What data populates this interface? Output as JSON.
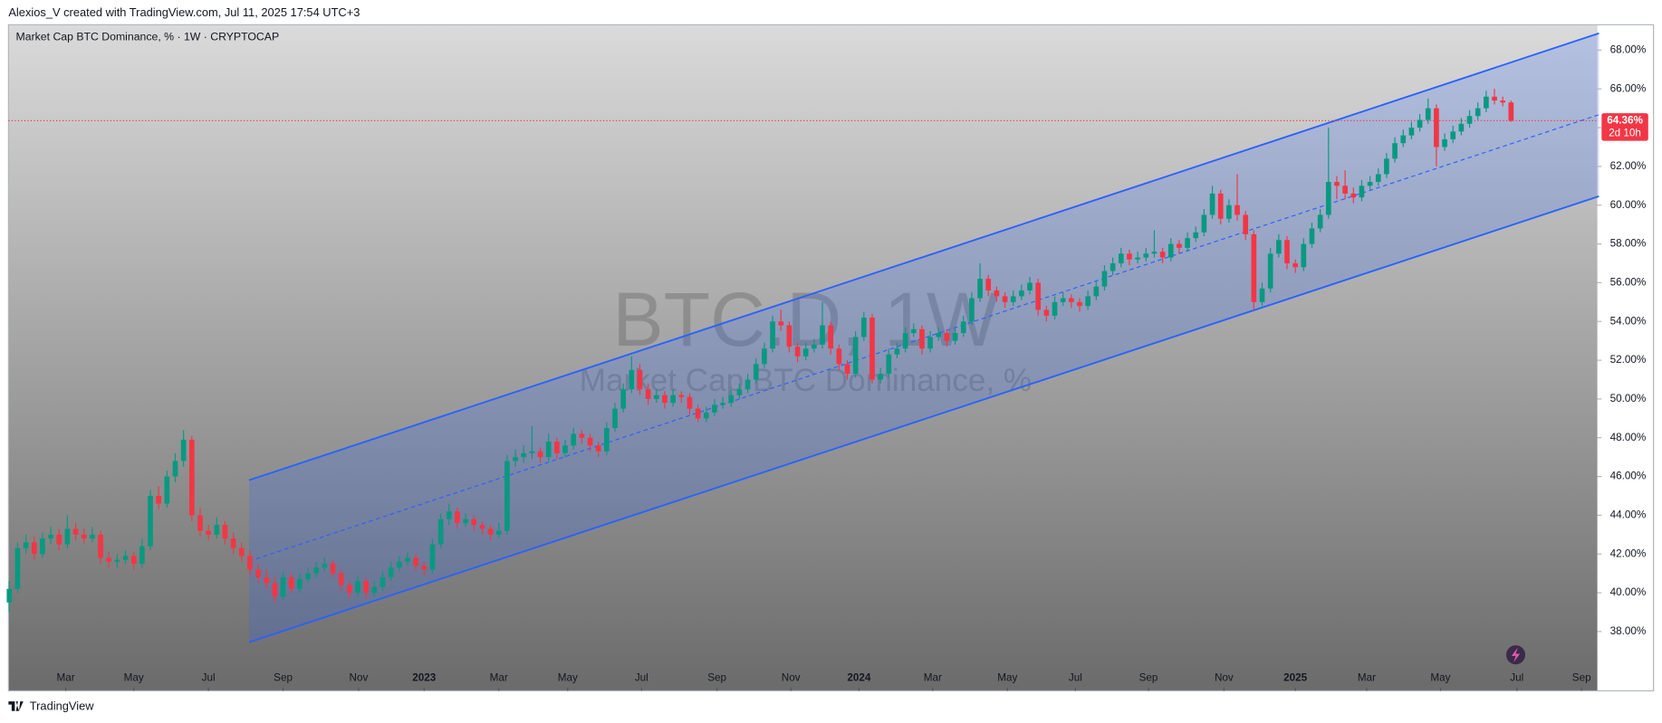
{
  "header": "Alexios_V created with TradingView.com, Jul 11, 2025 17:54 UTC+3",
  "footer": "TradingView",
  "chart_data": {
    "type": "candlestick",
    "title": "Market Cap BTC Dominance, % · 1W · CRYPTOCAP",
    "watermark": "BTC.D, 1W",
    "watermark_subtitle": "Market Cap BTC Dominance, %",
    "up_color": "#089981",
    "down_color": "#f23645",
    "xlim": [
      -0.1,
      191.4
    ],
    "ylim": [
      34.94,
      69.31
    ],
    "yticks": [
      {
        "value": 38,
        "label": "38.00%"
      },
      {
        "value": 40,
        "label": "40.00%"
      },
      {
        "value": 42,
        "label": "42.00%"
      },
      {
        "value": 44,
        "label": "44.00%"
      },
      {
        "value": 46,
        "label": "46.00%"
      },
      {
        "value": 48,
        "label": "48.00%"
      },
      {
        "value": 50,
        "label": "50.00%"
      },
      {
        "value": 52,
        "label": "52.00%"
      },
      {
        "value": 54,
        "label": "54.00%"
      },
      {
        "value": 56,
        "label": "56.00%"
      },
      {
        "value": 58,
        "label": "58.00%"
      },
      {
        "value": 60,
        "label": "60.00%"
      },
      {
        "value": 62,
        "label": "62.00%"
      },
      {
        "value": 64,
        "label": "64.00%"
      },
      {
        "value": 66,
        "label": "66.00%"
      },
      {
        "value": 68,
        "label": "68.00%"
      }
    ],
    "xticks": [
      {
        "value": 6.8,
        "label": "Mar"
      },
      {
        "value": 15.0,
        "label": "May"
      },
      {
        "value": 24.0,
        "label": "Jul"
      },
      {
        "value": 33.0,
        "label": "Sep"
      },
      {
        "value": 42.1,
        "label": "Nov"
      },
      {
        "value": 50.0,
        "label": "2023"
      },
      {
        "value": 59.0,
        "label": "Mar"
      },
      {
        "value": 67.3,
        "label": "May"
      },
      {
        "value": 76.2,
        "label": "Jul"
      },
      {
        "value": 85.3,
        "label": "Sep"
      },
      {
        "value": 94.2,
        "label": "Nov"
      },
      {
        "value": 102.4,
        "label": "2024"
      },
      {
        "value": 111.3,
        "label": "Mar"
      },
      {
        "value": 120.3,
        "label": "May"
      },
      {
        "value": 128.5,
        "label": "Jul"
      },
      {
        "value": 137.3,
        "label": "Sep"
      },
      {
        "value": 146.4,
        "label": "Nov"
      },
      {
        "value": 155.0,
        "label": "2025"
      },
      {
        "value": 163.6,
        "label": "Mar"
      },
      {
        "value": 172.5,
        "label": "May"
      },
      {
        "value": 181.7,
        "label": "Jul"
      },
      {
        "value": 189.5,
        "label": "Sep"
      }
    ],
    "last_price": {
      "value": 64.36,
      "label": "64.36%",
      "countdown": "2d 10h",
      "color": "#f23645"
    },
    "channel": {
      "color": "#2962ff",
      "x": [
        28.9,
        191.6
      ],
      "upper": [
        45.81,
        68.87
      ],
      "middle": [
        41.63,
        64.67
      ],
      "lower": [
        37.45,
        60.46
      ]
    },
    "values": [
      [
        39.5,
        40.6,
        39.0,
        40.2
      ],
      [
        40.2,
        42.6,
        40.0,
        42.3
      ],
      [
        42.3,
        43.0,
        42.0,
        42.6
      ],
      [
        42.6,
        42.9,
        41.7,
        42.0
      ],
      [
        42.0,
        43.1,
        41.8,
        42.8
      ],
      [
        42.8,
        43.4,
        42.5,
        43.0
      ],
      [
        43.0,
        43.3,
        42.2,
        42.5
      ],
      [
        42.5,
        44.0,
        42.3,
        43.3
      ],
      [
        43.3,
        43.6,
        42.7,
        43.0
      ],
      [
        43.0,
        43.3,
        42.5,
        42.8
      ],
      [
        42.8,
        43.4,
        42.6,
        43.0
      ],
      [
        43.0,
        43.2,
        41.5,
        41.8
      ],
      [
        41.8,
        42.1,
        41.3,
        41.6
      ],
      [
        41.6,
        42.0,
        41.3,
        41.7
      ],
      [
        41.7,
        42.2,
        41.5,
        41.9
      ],
      [
        41.9,
        42.1,
        41.2,
        41.5
      ],
      [
        41.5,
        42.8,
        41.3,
        42.4
      ],
      [
        42.4,
        45.3,
        42.2,
        45.0
      ],
      [
        45.0,
        45.5,
        44.3,
        44.6
      ],
      [
        44.6,
        46.3,
        44.4,
        46.0
      ],
      [
        46.0,
        47.2,
        45.7,
        46.8
      ],
      [
        46.8,
        48.4,
        46.5,
        47.9
      ],
      [
        47.9,
        48.1,
        43.7,
        44.0
      ],
      [
        44.0,
        44.4,
        42.9,
        43.2
      ],
      [
        43.2,
        43.5,
        42.7,
        43.0
      ],
      [
        43.0,
        43.9,
        42.8,
        43.5
      ],
      [
        43.5,
        43.7,
        42.5,
        42.8
      ],
      [
        42.8,
        43.1,
        42.0,
        42.3
      ],
      [
        42.3,
        42.6,
        41.6,
        41.9
      ],
      [
        41.9,
        42.2,
        40.9,
        41.2
      ],
      [
        41.2,
        41.5,
        40.5,
        40.8
      ],
      [
        40.8,
        41.2,
        40.2,
        40.5
      ],
      [
        40.5,
        40.8,
        39.5,
        39.8
      ],
      [
        39.8,
        41.1,
        39.6,
        40.8
      ],
      [
        40.8,
        41.0,
        40.0,
        40.2
      ],
      [
        40.2,
        41.0,
        40.0,
        40.7
      ],
      [
        40.7,
        41.3,
        40.5,
        41.0
      ],
      [
        41.0,
        41.6,
        40.8,
        41.3
      ],
      [
        41.3,
        41.8,
        41.1,
        41.5
      ],
      [
        41.5,
        41.7,
        40.8,
        41.0
      ],
      [
        41.0,
        41.2,
        40.1,
        40.4
      ],
      [
        40.4,
        40.6,
        39.7,
        40.0
      ],
      [
        40.0,
        40.9,
        39.8,
        40.6
      ],
      [
        40.6,
        40.8,
        39.7,
        40.0
      ],
      [
        40.0,
        40.6,
        39.8,
        40.3
      ],
      [
        40.3,
        41.1,
        40.1,
        40.8
      ],
      [
        40.8,
        41.6,
        40.6,
        41.3
      ],
      [
        41.3,
        41.9,
        41.1,
        41.6
      ],
      [
        41.6,
        42.1,
        41.4,
        41.8
      ],
      [
        41.8,
        42.0,
        41.1,
        41.4
      ],
      [
        41.4,
        41.6,
        40.9,
        41.2
      ],
      [
        41.2,
        42.8,
        41.0,
        42.5
      ],
      [
        42.5,
        44.1,
        42.3,
        43.8
      ],
      [
        43.8,
        44.6,
        43.5,
        44.2
      ],
      [
        44.2,
        44.4,
        43.3,
        43.6
      ],
      [
        43.6,
        44.1,
        43.4,
        43.8
      ],
      [
        43.8,
        44.0,
        43.2,
        43.5
      ],
      [
        43.5,
        43.7,
        43.0,
        43.3
      ],
      [
        43.3,
        43.5,
        42.7,
        43.0
      ],
      [
        43.0,
        43.6,
        42.8,
        43.2
      ],
      [
        43.2,
        47.1,
        43.0,
        46.8
      ],
      [
        46.8,
        47.4,
        46.5,
        47.0
      ],
      [
        47.0,
        47.6,
        46.7,
        47.2
      ],
      [
        47.2,
        48.6,
        46.9,
        47.3
      ],
      [
        47.3,
        47.5,
        46.7,
        47.0
      ],
      [
        47.0,
        48.2,
        46.8,
        47.8
      ],
      [
        47.8,
        48.0,
        46.9,
        47.2
      ],
      [
        47.2,
        47.9,
        47.0,
        47.6
      ],
      [
        47.6,
        48.5,
        47.4,
        48.2
      ],
      [
        48.2,
        48.4,
        47.7,
        48.0
      ],
      [
        48.0,
        48.2,
        47.3,
        47.6
      ],
      [
        47.6,
        47.8,
        47.0,
        47.3
      ],
      [
        47.3,
        48.8,
        47.1,
        48.5
      ],
      [
        48.5,
        49.8,
        48.3,
        49.5
      ],
      [
        49.5,
        50.8,
        49.3,
        50.5
      ],
      [
        50.5,
        52.2,
        50.3,
        51.5
      ],
      [
        51.5,
        51.8,
        50.2,
        50.5
      ],
      [
        50.5,
        50.8,
        49.7,
        50.0
      ],
      [
        50.0,
        50.5,
        49.8,
        50.2
      ],
      [
        50.2,
        50.4,
        49.5,
        49.8
      ],
      [
        49.8,
        50.5,
        49.6,
        50.2
      ],
      [
        50.2,
        50.4,
        49.8,
        50.1
      ],
      [
        50.1,
        50.3,
        49.2,
        49.5
      ],
      [
        49.5,
        49.7,
        48.8,
        49.0
      ],
      [
        49.0,
        49.6,
        48.8,
        49.3
      ],
      [
        49.3,
        50.0,
        49.1,
        49.7
      ],
      [
        49.7,
        50.1,
        49.5,
        49.8
      ],
      [
        49.8,
        50.5,
        49.6,
        50.2
      ],
      [
        50.2,
        50.8,
        50.0,
        50.5
      ],
      [
        50.5,
        51.3,
        50.3,
        51.0
      ],
      [
        51.0,
        52.1,
        50.8,
        51.8
      ],
      [
        51.8,
        52.9,
        51.6,
        52.6
      ],
      [
        52.6,
        54.3,
        52.4,
        54.0
      ],
      [
        54.0,
        54.6,
        53.5,
        53.8
      ],
      [
        53.8,
        54.0,
        52.4,
        52.7
      ],
      [
        52.7,
        52.9,
        51.9,
        52.2
      ],
      [
        52.2,
        52.9,
        52.0,
        52.6
      ],
      [
        52.6,
        53.1,
        52.4,
        52.8
      ],
      [
        52.8,
        55.0,
        52.6,
        53.8
      ],
      [
        53.8,
        54.0,
        52.3,
        52.6
      ],
      [
        52.6,
        52.8,
        51.5,
        51.8
      ],
      [
        51.8,
        52.0,
        51.0,
        51.3
      ],
      [
        51.3,
        53.5,
        51.1,
        53.2
      ],
      [
        53.2,
        54.5,
        53.0,
        54.2
      ],
      [
        54.2,
        54.4,
        50.8,
        51.0
      ],
      [
        51.0,
        51.6,
        50.8,
        51.3
      ],
      [
        51.3,
        52.6,
        51.1,
        52.3
      ],
      [
        52.3,
        52.9,
        52.1,
        52.6
      ],
      [
        52.6,
        53.7,
        52.4,
        53.4
      ],
      [
        53.4,
        53.9,
        53.2,
        53.6
      ],
      [
        53.6,
        53.8,
        52.3,
        52.6
      ],
      [
        52.6,
        53.5,
        52.4,
        53.2
      ],
      [
        53.2,
        53.7,
        53.0,
        53.4
      ],
      [
        53.4,
        53.6,
        52.7,
        53.0
      ],
      [
        53.0,
        53.7,
        52.8,
        53.4
      ],
      [
        53.4,
        54.3,
        53.2,
        54.0
      ],
      [
        54.0,
        55.5,
        53.8,
        55.2
      ],
      [
        55.2,
        57.0,
        55.0,
        56.2
      ],
      [
        56.2,
        56.4,
        55.3,
        55.6
      ],
      [
        55.6,
        55.8,
        55.0,
        55.3
      ],
      [
        55.3,
        55.5,
        54.7,
        55.0
      ],
      [
        55.0,
        55.6,
        54.8,
        55.3
      ],
      [
        55.3,
        55.9,
        55.1,
        55.6
      ],
      [
        55.6,
        56.3,
        55.4,
        56.0
      ],
      [
        56.0,
        56.2,
        54.3,
        54.6
      ],
      [
        54.6,
        54.8,
        54.0,
        54.3
      ],
      [
        54.3,
        55.3,
        54.1,
        55.0
      ],
      [
        55.0,
        55.5,
        54.8,
        55.2
      ],
      [
        55.2,
        55.4,
        54.7,
        55.0
      ],
      [
        55.0,
        55.2,
        54.5,
        54.8
      ],
      [
        54.8,
        55.6,
        54.6,
        55.3
      ],
      [
        55.3,
        56.1,
        55.1,
        55.8
      ],
      [
        55.8,
        56.9,
        55.6,
        56.6
      ],
      [
        56.6,
        57.3,
        56.4,
        57.0
      ],
      [
        57.0,
        57.8,
        56.8,
        57.5
      ],
      [
        57.5,
        57.7,
        56.9,
        57.2
      ],
      [
        57.2,
        57.6,
        57.0,
        57.3
      ],
      [
        57.3,
        57.8,
        57.1,
        57.5
      ],
      [
        57.5,
        58.7,
        57.3,
        57.6
      ],
      [
        57.6,
        57.8,
        57.0,
        57.3
      ],
      [
        57.3,
        58.3,
        57.1,
        58.0
      ],
      [
        58.0,
        58.2,
        57.5,
        57.8
      ],
      [
        57.8,
        58.6,
        57.6,
        58.3
      ],
      [
        58.3,
        58.9,
        58.1,
        58.6
      ],
      [
        58.6,
        59.8,
        58.4,
        59.5
      ],
      [
        59.5,
        61.0,
        59.3,
        60.6
      ],
      [
        60.6,
        60.8,
        59.0,
        59.3
      ],
      [
        59.3,
        60.3,
        59.1,
        60.0
      ],
      [
        60.0,
        61.6,
        59.2,
        59.5
      ],
      [
        59.5,
        59.7,
        58.2,
        58.5
      ],
      [
        58.5,
        58.7,
        54.6,
        55.0
      ],
      [
        55.0,
        56.0,
        54.8,
        55.7
      ],
      [
        55.7,
        57.8,
        55.5,
        57.5
      ],
      [
        57.5,
        58.5,
        57.3,
        58.2
      ],
      [
        58.2,
        58.4,
        56.7,
        57.0
      ],
      [
        57.0,
        57.2,
        56.5,
        56.8
      ],
      [
        56.8,
        58.3,
        56.6,
        58.0
      ],
      [
        58.0,
        59.1,
        57.8,
        58.8
      ],
      [
        58.8,
        59.8,
        58.6,
        59.5
      ],
      [
        59.5,
        64.0,
        59.3,
        61.2
      ],
      [
        61.2,
        61.5,
        60.3,
        61.0
      ],
      [
        61.0,
        61.8,
        60.3,
        60.6
      ],
      [
        60.6,
        60.9,
        60.1,
        60.4
      ],
      [
        60.4,
        61.3,
        60.2,
        61.0
      ],
      [
        61.0,
        61.5,
        60.8,
        61.2
      ],
      [
        61.2,
        61.9,
        61.0,
        61.6
      ],
      [
        61.6,
        62.7,
        61.4,
        62.4
      ],
      [
        62.4,
        63.5,
        62.2,
        63.2
      ],
      [
        63.2,
        63.9,
        63.0,
        63.6
      ],
      [
        63.6,
        64.3,
        63.4,
        64.0
      ],
      [
        64.0,
        64.7,
        63.8,
        64.4
      ],
      [
        64.4,
        65.5,
        64.2,
        65.0
      ],
      [
        65.0,
        65.2,
        62.0,
        63.0
      ],
      [
        63.0,
        63.7,
        62.8,
        63.4
      ],
      [
        63.4,
        64.1,
        63.2,
        63.8
      ],
      [
        63.8,
        64.5,
        63.6,
        64.2
      ],
      [
        64.2,
        64.9,
        64.0,
        64.6
      ],
      [
        64.6,
        65.3,
        64.4,
        65.0
      ],
      [
        65.0,
        65.9,
        64.8,
        65.6
      ],
      [
        65.6,
        66.0,
        65.2,
        65.4
      ],
      [
        65.4,
        65.6,
        65.1,
        65.3
      ],
      [
        65.3,
        65.4,
        64.3,
        64.36
      ]
    ]
  }
}
